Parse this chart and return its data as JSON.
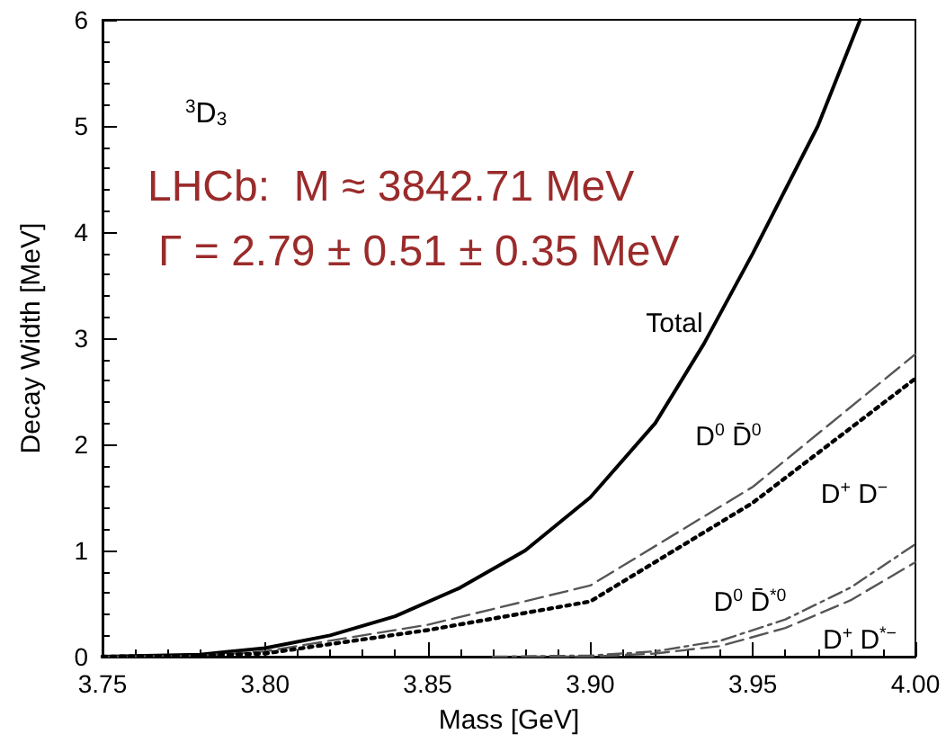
{
  "chart_data": {
    "type": "line",
    "xlabel": "Mass [GeV]",
    "ylabel": "Decay Width [MeV]",
    "xlim": [
      3.75,
      4.0
    ],
    "xticks": [
      {
        "value": 3.75,
        "label": "3.75"
      },
      {
        "value": 3.8,
        "label": "3.80"
      },
      {
        "value": 3.85,
        "label": "3.85"
      },
      {
        "value": 3.9,
        "label": "3.90"
      },
      {
        "value": 3.95,
        "label": "3.95"
      },
      {
        "value": 4.0,
        "label": "4.00"
      }
    ],
    "ylim": [
      0,
      6
    ],
    "yticks": [
      0,
      1,
      2,
      3,
      4,
      5,
      6
    ],
    "grid": false,
    "marker": "none",
    "series": [
      {
        "name": "Total",
        "color": "#000000",
        "line_style": "solid",
        "x": [
          3.75,
          3.78,
          3.8,
          3.82,
          3.84,
          3.86,
          3.88,
          3.9,
          3.92,
          3.935,
          3.95,
          3.97,
          3.983
        ],
        "values": [
          0,
          0.02,
          0.08,
          0.2,
          0.38,
          0.65,
          1.0,
          1.5,
          2.2,
          2.95,
          3.8,
          5.0,
          6.0
        ]
      },
      {
        "name": "D$^{0}$ D̄$^{0}$",
        "color": "#555555",
        "line_style": "dashed",
        "x": [
          3.75,
          3.78,
          3.8,
          3.85,
          3.9,
          3.95,
          4.0
        ],
        "values": [
          0,
          0.01,
          0.05,
          0.3,
          0.67,
          1.6,
          2.85
        ]
      },
      {
        "name": "D$^{+}$ D$^{−}$",
        "color": "#000000",
        "line_style": "dotted",
        "x": [
          3.75,
          3.78,
          3.8,
          3.85,
          3.9,
          3.95,
          4.0
        ],
        "values": [
          0,
          0.01,
          0.03,
          0.25,
          0.52,
          1.45,
          2.62
        ]
      },
      {
        "name": "D$^{0}$ D̄$^{*0}$",
        "color": "#555555",
        "line_style": "dashdot",
        "x": [
          3.87,
          3.9,
          3.92,
          3.94,
          3.96,
          3.98,
          4.0
        ],
        "values": [
          0,
          0.01,
          0.05,
          0.15,
          0.35,
          0.65,
          1.06
        ]
      },
      {
        "name": "D$^{+}$ D$^{*−}$",
        "color": "#555555",
        "line_style": "dashed",
        "x": [
          3.88,
          3.9,
          3.92,
          3.94,
          3.96,
          3.98,
          4.0
        ],
        "values": [
          0,
          0,
          0.03,
          0.1,
          0.27,
          0.53,
          0.89
        ]
      }
    ],
    "annotations": [
      "$^{3}$D$_{3}$",
      "LHCb:  M ≈ 3842.71 MeV",
      "Γ = 2.79 ± 0.51 ± 0.35 MeV"
    ]
  }
}
